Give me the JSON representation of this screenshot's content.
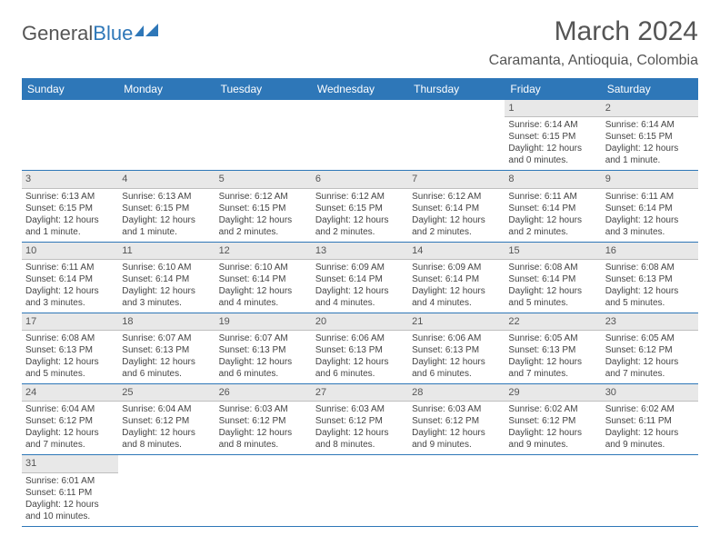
{
  "logo": {
    "text1": "General",
    "text2": "Blue"
  },
  "title": "March 2024",
  "location": "Caramanta, Antioquia, Colombia",
  "colors": {
    "header_bg": "#2e77b8",
    "header_fg": "#ffffff",
    "daynum_bg": "#e8e8e8",
    "row_border": "#2e77b8",
    "text": "#444444"
  },
  "day_names": [
    "Sunday",
    "Monday",
    "Tuesday",
    "Wednesday",
    "Thursday",
    "Friday",
    "Saturday"
  ],
  "weeks": [
    [
      {
        "n": "",
        "sr": "",
        "ss": "",
        "dl": ""
      },
      {
        "n": "",
        "sr": "",
        "ss": "",
        "dl": ""
      },
      {
        "n": "",
        "sr": "",
        "ss": "",
        "dl": ""
      },
      {
        "n": "",
        "sr": "",
        "ss": "",
        "dl": ""
      },
      {
        "n": "",
        "sr": "",
        "ss": "",
        "dl": ""
      },
      {
        "n": "1",
        "sr": "Sunrise: 6:14 AM",
        "ss": "Sunset: 6:15 PM",
        "dl": "Daylight: 12 hours and 0 minutes."
      },
      {
        "n": "2",
        "sr": "Sunrise: 6:14 AM",
        "ss": "Sunset: 6:15 PM",
        "dl": "Daylight: 12 hours and 1 minute."
      }
    ],
    [
      {
        "n": "3",
        "sr": "Sunrise: 6:13 AM",
        "ss": "Sunset: 6:15 PM",
        "dl": "Daylight: 12 hours and 1 minute."
      },
      {
        "n": "4",
        "sr": "Sunrise: 6:13 AM",
        "ss": "Sunset: 6:15 PM",
        "dl": "Daylight: 12 hours and 1 minute."
      },
      {
        "n": "5",
        "sr": "Sunrise: 6:12 AM",
        "ss": "Sunset: 6:15 PM",
        "dl": "Daylight: 12 hours and 2 minutes."
      },
      {
        "n": "6",
        "sr": "Sunrise: 6:12 AM",
        "ss": "Sunset: 6:15 PM",
        "dl": "Daylight: 12 hours and 2 minutes."
      },
      {
        "n": "7",
        "sr": "Sunrise: 6:12 AM",
        "ss": "Sunset: 6:14 PM",
        "dl": "Daylight: 12 hours and 2 minutes."
      },
      {
        "n": "8",
        "sr": "Sunrise: 6:11 AM",
        "ss": "Sunset: 6:14 PM",
        "dl": "Daylight: 12 hours and 2 minutes."
      },
      {
        "n": "9",
        "sr": "Sunrise: 6:11 AM",
        "ss": "Sunset: 6:14 PM",
        "dl": "Daylight: 12 hours and 3 minutes."
      }
    ],
    [
      {
        "n": "10",
        "sr": "Sunrise: 6:11 AM",
        "ss": "Sunset: 6:14 PM",
        "dl": "Daylight: 12 hours and 3 minutes."
      },
      {
        "n": "11",
        "sr": "Sunrise: 6:10 AM",
        "ss": "Sunset: 6:14 PM",
        "dl": "Daylight: 12 hours and 3 minutes."
      },
      {
        "n": "12",
        "sr": "Sunrise: 6:10 AM",
        "ss": "Sunset: 6:14 PM",
        "dl": "Daylight: 12 hours and 4 minutes."
      },
      {
        "n": "13",
        "sr": "Sunrise: 6:09 AM",
        "ss": "Sunset: 6:14 PM",
        "dl": "Daylight: 12 hours and 4 minutes."
      },
      {
        "n": "14",
        "sr": "Sunrise: 6:09 AM",
        "ss": "Sunset: 6:14 PM",
        "dl": "Daylight: 12 hours and 4 minutes."
      },
      {
        "n": "15",
        "sr": "Sunrise: 6:08 AM",
        "ss": "Sunset: 6:14 PM",
        "dl": "Daylight: 12 hours and 5 minutes."
      },
      {
        "n": "16",
        "sr": "Sunrise: 6:08 AM",
        "ss": "Sunset: 6:13 PM",
        "dl": "Daylight: 12 hours and 5 minutes."
      }
    ],
    [
      {
        "n": "17",
        "sr": "Sunrise: 6:08 AM",
        "ss": "Sunset: 6:13 PM",
        "dl": "Daylight: 12 hours and 5 minutes."
      },
      {
        "n": "18",
        "sr": "Sunrise: 6:07 AM",
        "ss": "Sunset: 6:13 PM",
        "dl": "Daylight: 12 hours and 6 minutes."
      },
      {
        "n": "19",
        "sr": "Sunrise: 6:07 AM",
        "ss": "Sunset: 6:13 PM",
        "dl": "Daylight: 12 hours and 6 minutes."
      },
      {
        "n": "20",
        "sr": "Sunrise: 6:06 AM",
        "ss": "Sunset: 6:13 PM",
        "dl": "Daylight: 12 hours and 6 minutes."
      },
      {
        "n": "21",
        "sr": "Sunrise: 6:06 AM",
        "ss": "Sunset: 6:13 PM",
        "dl": "Daylight: 12 hours and 6 minutes."
      },
      {
        "n": "22",
        "sr": "Sunrise: 6:05 AM",
        "ss": "Sunset: 6:13 PM",
        "dl": "Daylight: 12 hours and 7 minutes."
      },
      {
        "n": "23",
        "sr": "Sunrise: 6:05 AM",
        "ss": "Sunset: 6:12 PM",
        "dl": "Daylight: 12 hours and 7 minutes."
      }
    ],
    [
      {
        "n": "24",
        "sr": "Sunrise: 6:04 AM",
        "ss": "Sunset: 6:12 PM",
        "dl": "Daylight: 12 hours and 7 minutes."
      },
      {
        "n": "25",
        "sr": "Sunrise: 6:04 AM",
        "ss": "Sunset: 6:12 PM",
        "dl": "Daylight: 12 hours and 8 minutes."
      },
      {
        "n": "26",
        "sr": "Sunrise: 6:03 AM",
        "ss": "Sunset: 6:12 PM",
        "dl": "Daylight: 12 hours and 8 minutes."
      },
      {
        "n": "27",
        "sr": "Sunrise: 6:03 AM",
        "ss": "Sunset: 6:12 PM",
        "dl": "Daylight: 12 hours and 8 minutes."
      },
      {
        "n": "28",
        "sr": "Sunrise: 6:03 AM",
        "ss": "Sunset: 6:12 PM",
        "dl": "Daylight: 12 hours and 9 minutes."
      },
      {
        "n": "29",
        "sr": "Sunrise: 6:02 AM",
        "ss": "Sunset: 6:12 PM",
        "dl": "Daylight: 12 hours and 9 minutes."
      },
      {
        "n": "30",
        "sr": "Sunrise: 6:02 AM",
        "ss": "Sunset: 6:11 PM",
        "dl": "Daylight: 12 hours and 9 minutes."
      }
    ],
    [
      {
        "n": "31",
        "sr": "Sunrise: 6:01 AM",
        "ss": "Sunset: 6:11 PM",
        "dl": "Daylight: 12 hours and 10 minutes."
      },
      {
        "n": "",
        "sr": "",
        "ss": "",
        "dl": ""
      },
      {
        "n": "",
        "sr": "",
        "ss": "",
        "dl": ""
      },
      {
        "n": "",
        "sr": "",
        "ss": "",
        "dl": ""
      },
      {
        "n": "",
        "sr": "",
        "ss": "",
        "dl": ""
      },
      {
        "n": "",
        "sr": "",
        "ss": "",
        "dl": ""
      },
      {
        "n": "",
        "sr": "",
        "ss": "",
        "dl": ""
      }
    ]
  ]
}
